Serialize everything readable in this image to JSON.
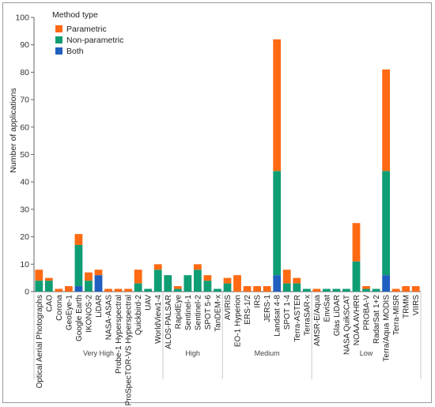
{
  "chart_data": {
    "type": "bar",
    "stacked": true,
    "ylabel": "Number of applications",
    "ylim": [
      0,
      100
    ],
    "yticks": [
      0,
      10,
      20,
      30,
      40,
      50,
      60,
      70,
      80,
      90,
      100
    ],
    "legend": {
      "title": "Method type",
      "placement": "top-left"
    },
    "categories": [
      "Optical Aerial Photographs",
      "CAO",
      "Corona",
      "GeoEye-1",
      "Google Earth",
      "IKONOS-2",
      "LiDAR",
      "NASA-ASAS",
      "Probe-1 Hyperspectral",
      "ProSpecTOR-VS Hyperspectral",
      "Quickbird-2",
      "UAV",
      "WorldView1-4",
      "ALOS-PALSAR",
      "RapidEye",
      "Sentinel-1",
      "Sentinel-2",
      "SPOT 5-6",
      "TanDEM-x",
      "AVIRIS",
      "EO-1 Hyperion",
      "ERS-1/2",
      "IRS",
      "JERS-1",
      "Landsat 4-8",
      "SPOT 1-4",
      "Terra-ASTER",
      "TerraSAR-x",
      "AMSR-E/Aqua",
      "EnviSat",
      "Glas LiDAR",
      "NASA QuikSCAT",
      "NOAA AVHRR",
      "PROBA-V",
      "RadarSat 1+2",
      "Terra/Aqua MODIS",
      "Terra-MISR",
      "TRMM",
      "VIIRS"
    ],
    "series": [
      {
        "name": "Both",
        "color": "#1f5fbf",
        "values": [
          0,
          0,
          0,
          0,
          2,
          0,
          6,
          0,
          0,
          0,
          0,
          0,
          0,
          0,
          0,
          0,
          0,
          0,
          0,
          0,
          0,
          0,
          0,
          0,
          6,
          0,
          0,
          0,
          0,
          0,
          0,
          0,
          0,
          0,
          0,
          6,
          0,
          0,
          0
        ]
      },
      {
        "name": "Non-parametric",
        "color": "#0f9d74",
        "values": [
          4,
          4,
          0,
          0,
          15,
          4,
          0,
          0,
          0,
          0,
          3,
          1,
          8,
          6,
          1,
          6,
          8,
          4,
          1,
          3,
          0,
          0,
          0,
          0,
          38,
          3,
          3,
          1,
          0,
          1,
          1,
          1,
          11,
          1,
          1,
          38,
          0,
          0,
          0
        ]
      },
      {
        "name": "Parametric",
        "color": "#ff6a13",
        "values": [
          4,
          1,
          1,
          2,
          4,
          3,
          2,
          1,
          1,
          1,
          5,
          0,
          2,
          0,
          1,
          0,
          2,
          2,
          0,
          2,
          6,
          2,
          2,
          2,
          48,
          5,
          2,
          0,
          1,
          0,
          0,
          0,
          14,
          1,
          0,
          37,
          1,
          2,
          2
        ]
      }
    ],
    "groups": [
      {
        "label": "Very High",
        "start": 0,
        "end": 12
      },
      {
        "label": "High",
        "start": 13,
        "end": 18
      },
      {
        "label": "Medium",
        "start": 19,
        "end": 27
      },
      {
        "label": "Low",
        "start": 28,
        "end": 38
      }
    ],
    "grid": false
  }
}
